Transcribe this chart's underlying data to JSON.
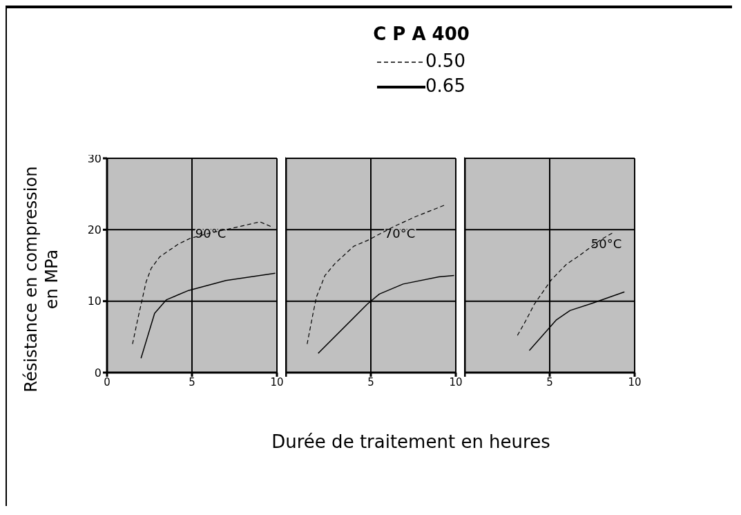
{
  "chart_data": [
    {
      "type": "line",
      "legend_title": "C P A 400",
      "ylabel": "Résistance en compression en MPa",
      "legend": "top",
      "grid": true,
      "xlim": [
        0,
        10
      ],
      "xticks": [
        0,
        5,
        10
      ],
      "ylim": [
        0,
        30
      ],
      "yticks": [
        0,
        10,
        20,
        30
      ],
      "annotations": [
        "90°C"
      ],
      "series": [
        {
          "name": "0.50",
          "color": "#000000",
          "line_style": "dashed",
          "x": [
            1.5,
            1.8,
            2.3,
            2.6,
            3.1,
            4.2,
            4.9,
            6,
            7.9,
            9,
            9.7
          ],
          "values": [
            4,
            7.4,
            12.7,
            14.6,
            16.2,
            18,
            18.8,
            19.5,
            20.5,
            21.1,
            20.4
          ]
        },
        {
          "name": "0.65",
          "color": "#000000",
          "line_style": "solid",
          "x": [
            2,
            2.8,
            3.5,
            4.8,
            7,
            9.9
          ],
          "values": [
            2,
            8.3,
            10.2,
            11.5,
            12.9,
            13.9
          ]
        }
      ]
    },
    {
      "type": "line",
      "xlabel": "Durée de traitement en heures",
      "grid": true,
      "tick_labels": "x",
      "xlim": [
        0,
        10
      ],
      "xticks": [
        {
          "value": 0,
          "label": null
        },
        5,
        10
      ],
      "ylim": [
        0,
        30
      ],
      "yticks": [
        0,
        10,
        20,
        30
      ],
      "annotations": [
        "70°C"
      ],
      "series": [
        {
          "color": "#000000",
          "line_style": "dashed",
          "x": [
            1.25,
            1.6,
            1.8,
            2.3,
            2.9,
            4,
            4.8,
            6.4,
            7.6,
            9.4
          ],
          "values": [
            4,
            8.3,
            10.6,
            13.6,
            15.3,
            17.7,
            18.5,
            20.5,
            21.8,
            23.5
          ]
        },
        {
          "color": "#000000",
          "line_style": "solid",
          "x": [
            1.9,
            4.8,
            5.5,
            6.9,
            9,
            9.9
          ],
          "values": [
            2.7,
            9.6,
            11,
            12.4,
            13.4,
            13.6
          ]
        }
      ]
    },
    {
      "type": "line",
      "grid": true,
      "tick_labels": "x",
      "xlim": [
        0,
        10
      ],
      "xticks": [
        {
          "value": 0,
          "label": null
        },
        5,
        10
      ],
      "ylim": [
        0,
        30
      ],
      "yticks": [
        0,
        10,
        20,
        30
      ],
      "annotations": [
        "50°C"
      ],
      "series": [
        {
          "color": "#000000",
          "line_style": "dashed",
          "x": [
            3.1,
            3.6,
            4.1,
            5.1,
            6,
            6.7,
            8,
            8.8
          ],
          "values": [
            5.2,
            7.3,
            9.6,
            13,
            15.2,
            16.3,
            18.6,
            19.7
          ]
        },
        {
          "color": "#000000",
          "line_style": "solid",
          "x": [
            3.8,
            5.4,
            6.2,
            7.5,
            9.4
          ],
          "values": [
            3.1,
            7.4,
            8.7,
            9.7,
            11.3
          ]
        }
      ]
    }
  ]
}
